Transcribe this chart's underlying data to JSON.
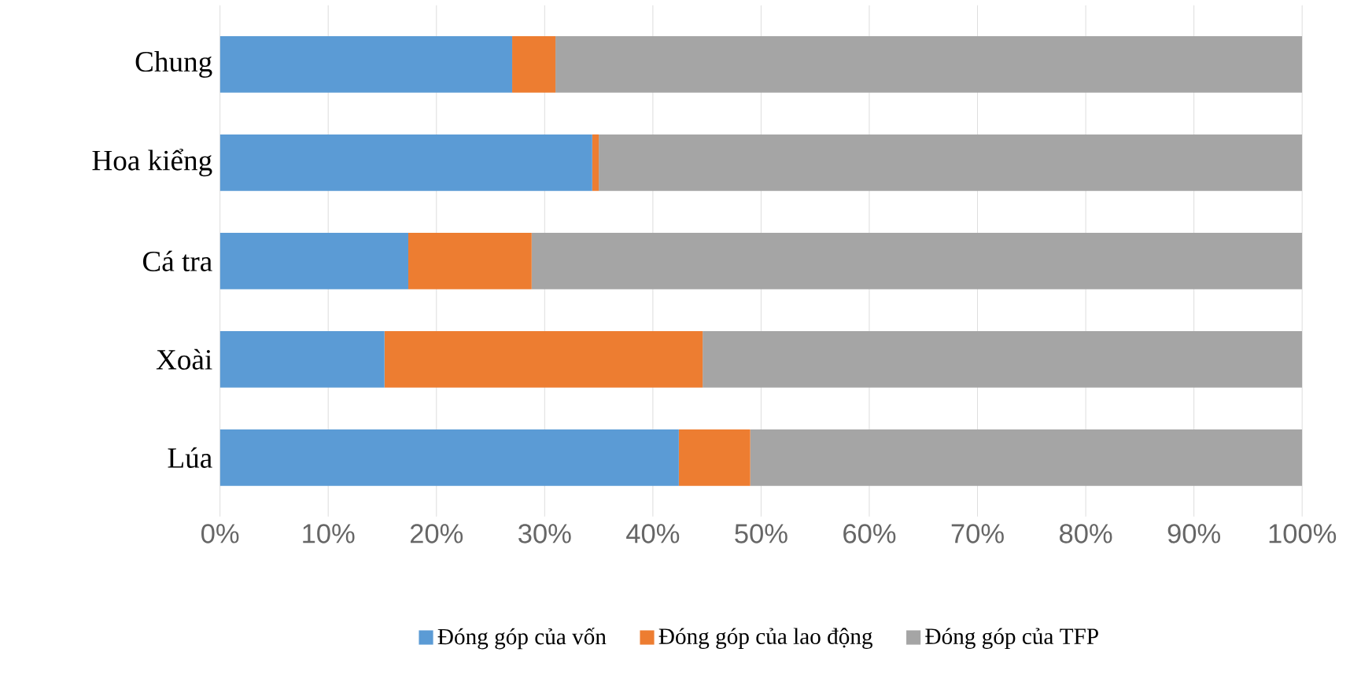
{
  "chart_data": {
    "type": "bar",
    "orientation": "horizontal",
    "stacked": true,
    "categories": [
      "Chung",
      "Hoa kiểng",
      "Cá tra",
      "Xoài",
      "Lúa"
    ],
    "series": [
      {
        "name": "Đóng góp của vốn",
        "color": "#5b9bd5",
        "values": [
          27,
          34.4,
          17.4,
          15.2,
          42.4
        ]
      },
      {
        "name": "Đóng góp của lao động",
        "color": "#ed7d31",
        "values": [
          4,
          0.6,
          11.4,
          29.4,
          6.6
        ]
      },
      {
        "name": "Đóng góp của TFP",
        "color": "#a5a5a5",
        "values": [
          69,
          65,
          71.2,
          55.4,
          51
        ]
      }
    ],
    "xlim": [
      0,
      100
    ],
    "xticks": [
      {
        "value": 0,
        "label": "0%"
      },
      {
        "value": 10,
        "label": "10%"
      },
      {
        "value": 20,
        "label": "20%"
      },
      {
        "value": 30,
        "label": "30%"
      },
      {
        "value": 40,
        "label": "40%"
      },
      {
        "value": 50,
        "label": "50%"
      },
      {
        "value": 60,
        "label": "60%"
      },
      {
        "value": 70,
        "label": "70%"
      },
      {
        "value": 80,
        "label": "80%"
      },
      {
        "value": 90,
        "label": "90%"
      },
      {
        "value": 100,
        "label": "100%"
      }
    ],
    "grid": "x",
    "legend": "bottom"
  }
}
